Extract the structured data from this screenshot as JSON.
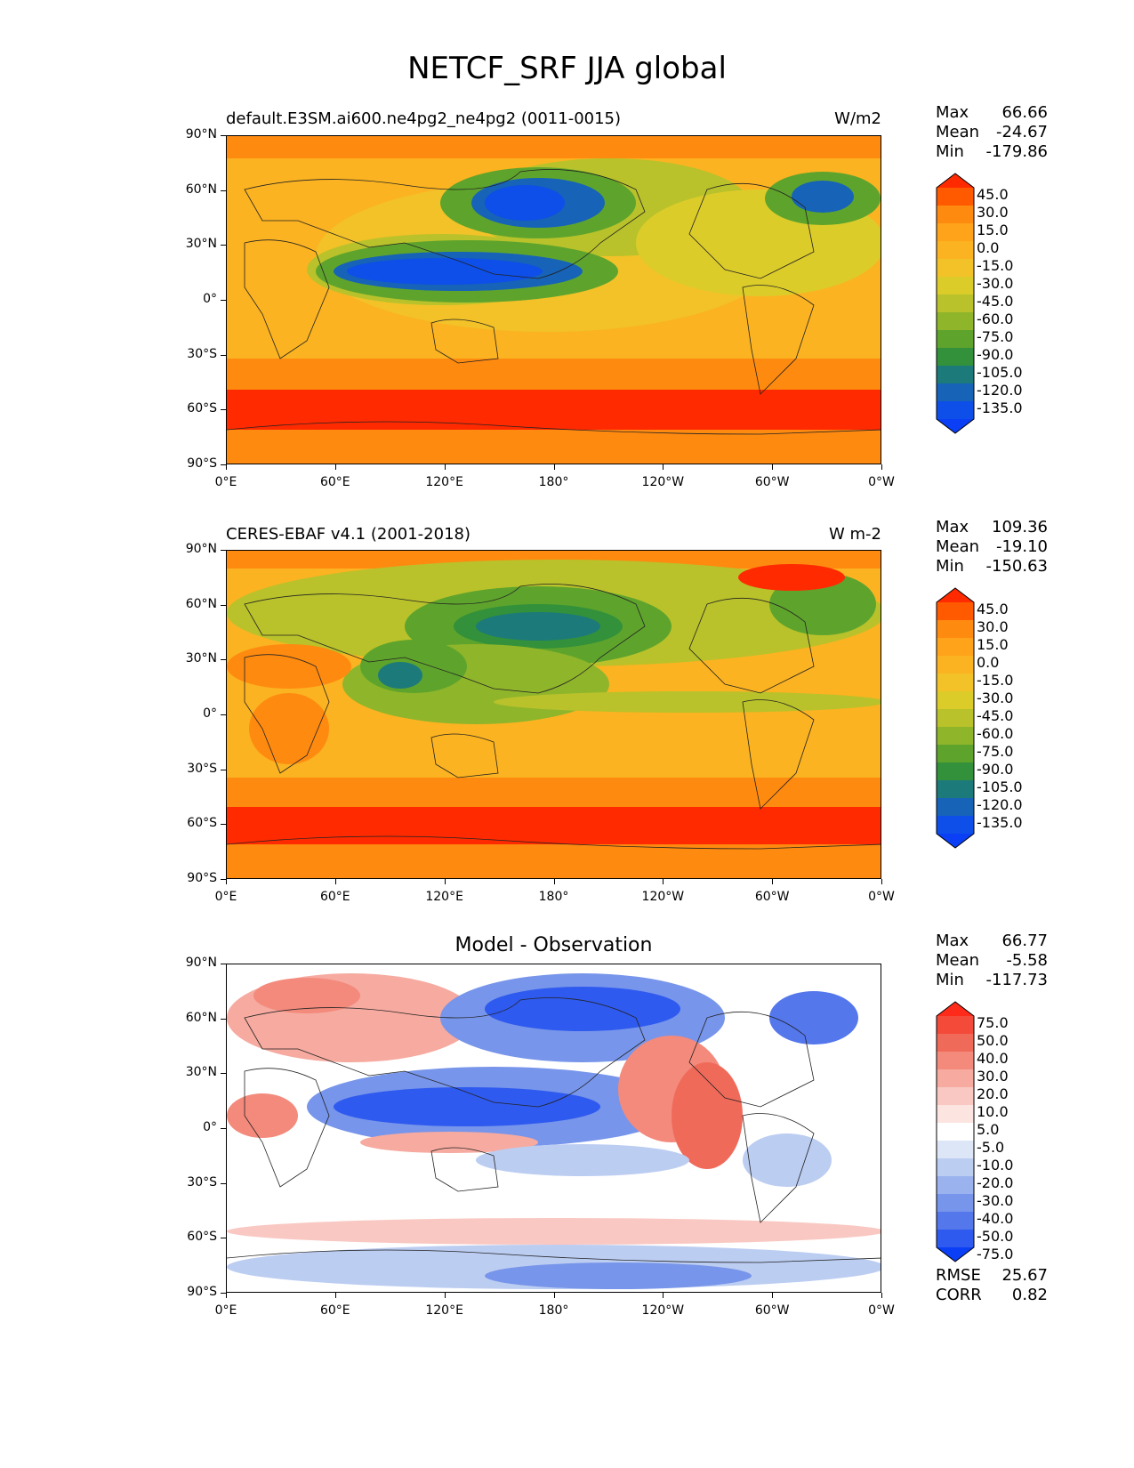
{
  "figure": {
    "title": "NETCF_SRF JJA global"
  },
  "axes": {
    "lat_labels": [
      "90°N",
      "60°N",
      "30°N",
      "0°",
      "30°S",
      "60°S",
      "90°S"
    ],
    "lon_labels": [
      "0°E",
      "60°E",
      "120°E",
      "180°",
      "120°W",
      "60°W",
      "0°W"
    ]
  },
  "panels": [
    {
      "title_left": "default.E3SM.ai600.ne4pg2_ne4pg2 (0011-0015)",
      "title_right": "W/m2",
      "stats": [
        {
          "label": "Max",
          "value": "66.66"
        },
        {
          "label": "Mean",
          "value": "-24.67"
        },
        {
          "label": "Min",
          "value": "-179.86"
        }
      ],
      "colorbar_levels": [
        "45.0",
        "30.0",
        "15.0",
        "0.0",
        "-15.0",
        "-30.0",
        "-45.0",
        "-60.0",
        "-75.0",
        "-90.0",
        "-105.0",
        "-120.0",
        "-135.0"
      ],
      "colorbar_colors": [
        "#ff2a00",
        "#ff5a00",
        "#ff8a10",
        "#ffa31a",
        "#fbb321",
        "#f2c228",
        "#dccc2a",
        "#b9c22a",
        "#8fb52a",
        "#5ea42c",
        "#32913a",
        "#1d7a7a",
        "#1663b8",
        "#0d4fe8",
        "#0a3ff5"
      ]
    },
    {
      "title_left": "CERES-EBAF v4.1 (2001-2018)",
      "title_right": "W m-2",
      "stats": [
        {
          "label": "Max",
          "value": "109.36"
        },
        {
          "label": "Mean",
          "value": "-19.10"
        },
        {
          "label": "Min",
          "value": "-150.63"
        }
      ],
      "colorbar_levels": [
        "45.0",
        "30.0",
        "15.0",
        "0.0",
        "-15.0",
        "-30.0",
        "-45.0",
        "-60.0",
        "-75.0",
        "-90.0",
        "-105.0",
        "-120.0",
        "-135.0"
      ],
      "colorbar_colors": [
        "#ff2a00",
        "#ff5a00",
        "#ff8a10",
        "#ffa31a",
        "#fbb321",
        "#f2c228",
        "#dccc2a",
        "#b9c22a",
        "#8fb52a",
        "#5ea42c",
        "#32913a",
        "#1d7a7a",
        "#1663b8",
        "#0d4fe8",
        "#0a3ff5"
      ]
    },
    {
      "title_center": "Model - Observation",
      "stats": [
        {
          "label": "Max",
          "value": "66.77"
        },
        {
          "label": "Mean",
          "value": "-5.58"
        },
        {
          "label": "Min",
          "value": "-117.73"
        }
      ],
      "colorbar_levels": [
        "75.0",
        "50.0",
        "40.0",
        "30.0",
        "20.0",
        "10.0",
        "5.0",
        "-5.0",
        "-10.0",
        "-20.0",
        "-30.0",
        "-40.0",
        "-50.0",
        "-75.0"
      ],
      "colorbar_colors": [
        "#ff2a1a",
        "#f44a3a",
        "#f06a5a",
        "#f38a7c",
        "#f6aaa0",
        "#f9c8c2",
        "#fce4e0",
        "#ffffff",
        "#dde6f7",
        "#bccdf2",
        "#9ab2ed",
        "#7795ea",
        "#5477ec",
        "#2f5aef",
        "#0a3ff5"
      ],
      "footer_stats": [
        {
          "label": "RMSE",
          "value": "25.67"
        },
        {
          "label": "CORR",
          "value": "0.82"
        }
      ]
    }
  ]
}
